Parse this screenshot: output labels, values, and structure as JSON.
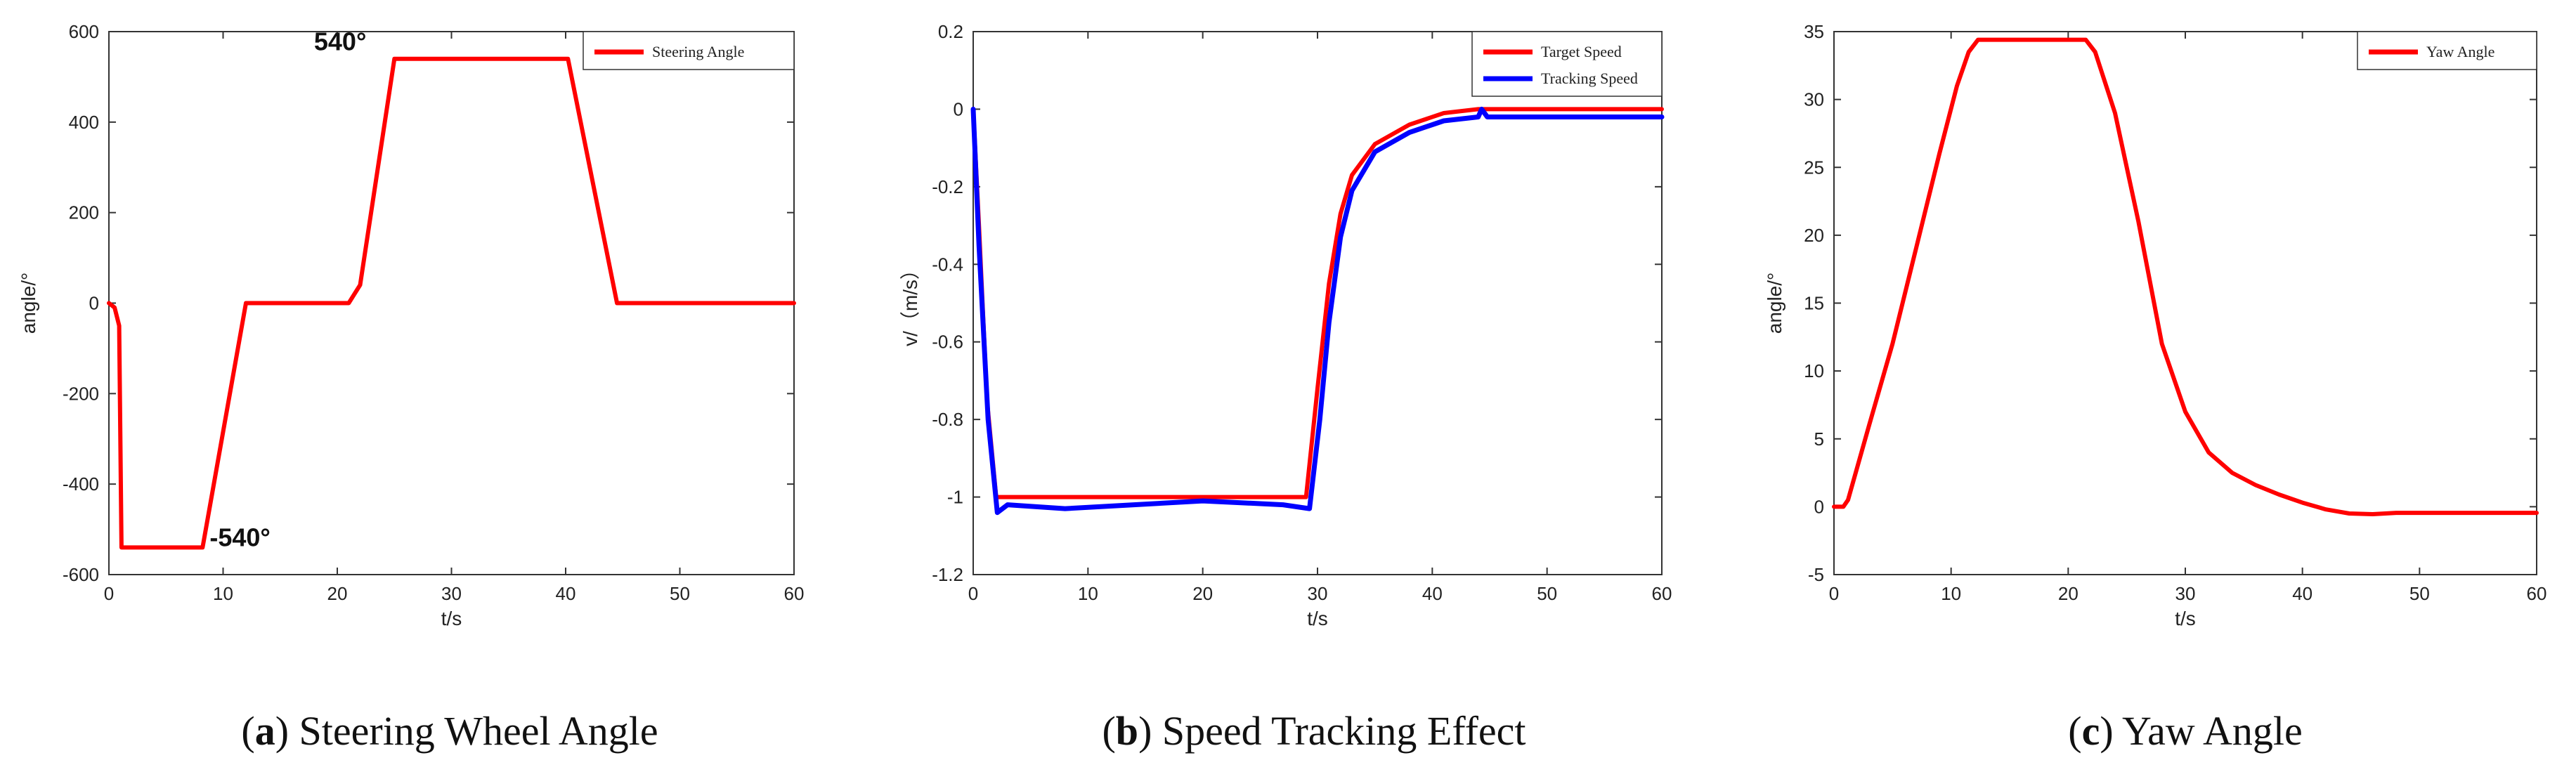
{
  "chart_data": [
    {
      "type": "line",
      "caption": {
        "letter": "a",
        "text": "Steering Wheel Angle"
      },
      "xlabel": "t/s",
      "ylabel": "angle/°",
      "xlim": [
        0,
        60
      ],
      "ylim": [
        -600,
        600
      ],
      "xticks": [
        0,
        10,
        20,
        30,
        40,
        50,
        60
      ],
      "yticks": [
        -600,
        -400,
        -200,
        0,
        200,
        400,
        600
      ],
      "legend_position": "top-right",
      "series": [
        {
          "name": "Steering Angle",
          "color": "#ff0000",
          "points": [
            [
              0,
              0
            ],
            [
              0.5,
              -10
            ],
            [
              0.9,
              -50
            ],
            [
              1.1,
              -540
            ],
            [
              8.2,
              -540
            ],
            [
              12,
              0
            ],
            [
              21,
              0
            ],
            [
              22,
              40
            ],
            [
              25,
              540
            ],
            [
              40.2,
              540
            ],
            [
              44.5,
              0
            ],
            [
              60,
              0
            ]
          ]
        }
      ],
      "annotations": [
        {
          "text": "540°",
          "x": 23.5,
          "y": 540
        },
        {
          "text": "-540°",
          "x": 8.7,
          "y": -540
        }
      ]
    },
    {
      "type": "line",
      "caption": {
        "letter": "b",
        "text": "Speed Tracking Effect"
      },
      "xlabel": "t/s",
      "ylabel": "v/（m/s）",
      "xlim": [
        0,
        60
      ],
      "ylim": [
        -1.2,
        0.2
      ],
      "xticks": [
        0,
        10,
        20,
        30,
        40,
        50,
        60
      ],
      "yticks": [
        -1.2,
        -1.0,
        -0.8,
        -0.6,
        -0.4,
        -0.2,
        0,
        0.2
      ],
      "legend_position": "top-right",
      "series": [
        {
          "name": "Target Speed",
          "color": "#ff0000",
          "points": [
            [
              0,
              0
            ],
            [
              0.5,
              -0.3
            ],
            [
              1.2,
              -0.75
            ],
            [
              2,
              -1.0
            ],
            [
              29,
              -1.0
            ],
            [
              30,
              -0.72
            ],
            [
              31,
              -0.45
            ],
            [
              32,
              -0.27
            ],
            [
              33,
              -0.17
            ],
            [
              35,
              -0.09
            ],
            [
              38,
              -0.04
            ],
            [
              41,
              -0.01
            ],
            [
              44,
              0.0
            ],
            [
              45,
              0.0
            ],
            [
              60,
              0.0
            ]
          ]
        },
        {
          "name": "Tracking Speed",
          "color": "#0000ff",
          "points": [
            [
              0,
              0
            ],
            [
              0.5,
              -0.35
            ],
            [
              1.3,
              -0.8
            ],
            [
              2.1,
              -1.04
            ],
            [
              3,
              -1.02
            ],
            [
              8,
              -1.03
            ],
            [
              14,
              -1.02
            ],
            [
              20,
              -1.01
            ],
            [
              27,
              -1.02
            ],
            [
              29.3,
              -1.03
            ],
            [
              30.2,
              -0.8
            ],
            [
              31,
              -0.55
            ],
            [
              32,
              -0.33
            ],
            [
              33,
              -0.21
            ],
            [
              35,
              -0.11
            ],
            [
              38,
              -0.06
            ],
            [
              41,
              -0.03
            ],
            [
              44,
              -0.02
            ],
            [
              44.3,
              0.0
            ],
            [
              44.8,
              -0.02
            ],
            [
              60,
              -0.02
            ]
          ]
        }
      ]
    },
    {
      "type": "line",
      "caption": {
        "letter": "c",
        "text": "Yaw Angle"
      },
      "xlabel": "t/s",
      "ylabel": "angle/°",
      "xlim": [
        0,
        60
      ],
      "ylim": [
        -5,
        35
      ],
      "xticks": [
        0,
        10,
        20,
        30,
        40,
        50,
        60
      ],
      "yticks": [
        -5,
        0,
        5,
        10,
        15,
        20,
        25,
        30,
        35
      ],
      "legend_position": "top-right",
      "series": [
        {
          "name": "Yaw Angle",
          "color": "#ff0000",
          "points": [
            [
              0,
              0
            ],
            [
              0.8,
              0
            ],
            [
              1.2,
              0.5
            ],
            [
              3,
              6
            ],
            [
              5,
              12
            ],
            [
              7,
              19
            ],
            [
              9,
              26
            ],
            [
              10.5,
              31
            ],
            [
              11.5,
              33.5
            ],
            [
              12.3,
              34.4
            ],
            [
              21.5,
              34.4
            ],
            [
              22.3,
              33.5
            ],
            [
              24,
              29
            ],
            [
              26,
              21
            ],
            [
              28,
              12
            ],
            [
              30,
              7
            ],
            [
              32,
              4
            ],
            [
              34,
              2.5
            ],
            [
              36,
              1.6
            ],
            [
              38,
              0.9
            ],
            [
              40,
              0.3
            ],
            [
              42,
              -0.2
            ],
            [
              44,
              -0.5
            ],
            [
              46,
              -0.55
            ],
            [
              48,
              -0.45
            ],
            [
              50,
              -0.45
            ],
            [
              60,
              -0.45
            ]
          ]
        }
      ]
    }
  ]
}
